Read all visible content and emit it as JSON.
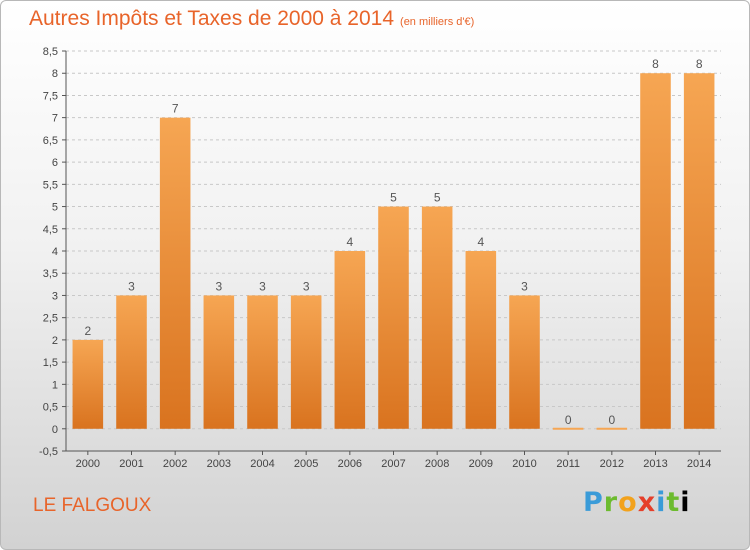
{
  "header": {
    "title": "Autres Impôts et Taxes de 2000 à 2014",
    "unit": "(en milliers d'€)"
  },
  "footer": {
    "commune": "LE FALGOUX",
    "logo_text": "Proxiti"
  },
  "colors": {
    "accent": "#e8642a",
    "bar_light": "#f6a653",
    "bar_dark": "#d9731f",
    "grid": "#c8c8c8"
  },
  "chart_data": {
    "type": "bar",
    "title": "Autres Impôts et Taxes de 2000 à 2014",
    "subtitle": "(en milliers d'€)",
    "xlabel": "",
    "ylabel": "",
    "categories": [
      "2000",
      "2001",
      "2002",
      "2003",
      "2004",
      "2005",
      "2006",
      "2007",
      "2008",
      "2009",
      "2010",
      "2011",
      "2012",
      "2013",
      "2014"
    ],
    "values": [
      2,
      3,
      7,
      3,
      3,
      3,
      4,
      5,
      5,
      4,
      3,
      0,
      0,
      8,
      8
    ],
    "value_labels": [
      "2",
      "3",
      "7",
      "3",
      "3",
      "3",
      "4",
      "5",
      "5",
      "4",
      "3",
      "0",
      "0",
      "8",
      "8"
    ],
    "ylim": [
      -0.5,
      8.5
    ],
    "yticks": [
      -0.5,
      0,
      0.5,
      1,
      1.5,
      2,
      2.5,
      3,
      3.5,
      4,
      4.5,
      5,
      5.5,
      6,
      6.5,
      7,
      7.5,
      8,
      8.5
    ],
    "ytick_labels": [
      "-0,5",
      "0",
      "0,5",
      "1",
      "1,5",
      "2",
      "2,5",
      "3",
      "3,5",
      "4",
      "4,5",
      "5",
      "5,5",
      "6",
      "6,5",
      "7",
      "7,5",
      "8",
      "8,5"
    ],
    "grid": true,
    "legend": "none"
  }
}
